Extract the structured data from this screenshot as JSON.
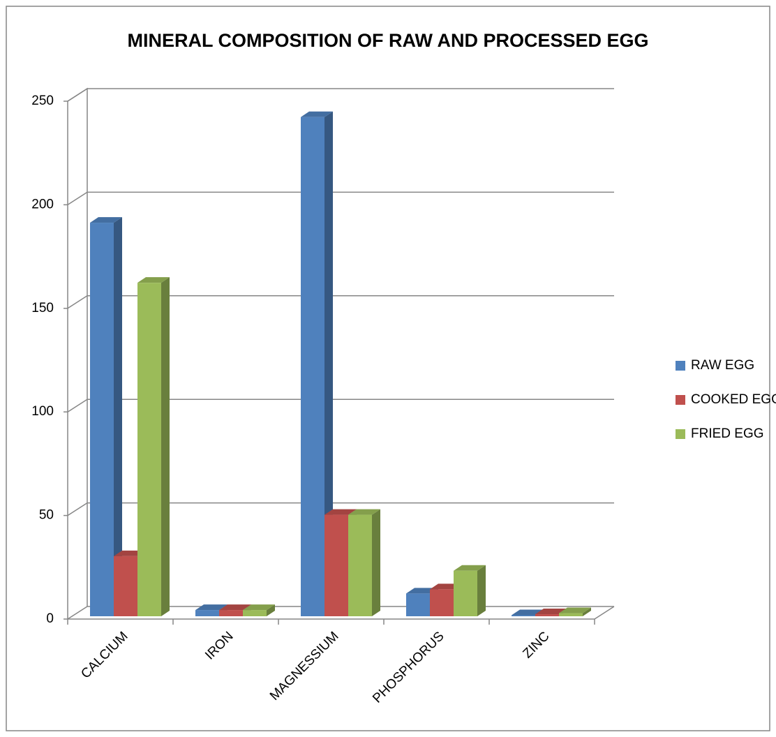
{
  "chart_data": {
    "type": "bar3d",
    "title": "MINERAL COMPOSITION OF RAW AND PROCESSED EGG",
    "categories": [
      "CALCIUM",
      "IRON",
      "MAGNESSIUM",
      "PHOSPHORUS",
      "ZINC"
    ],
    "series": [
      {
        "name": "RAW EGG",
        "color": "#4f81bd",
        "values": [
          190,
          3,
          241,
          11,
          0.5
        ]
      },
      {
        "name": "COOKED EGG",
        "color": "#c0504d",
        "values": [
          29,
          3,
          49,
          13,
          1
        ]
      },
      {
        "name": "FRIED EGG",
        "color": "#9bbb59",
        "values": [
          161,
          3,
          49,
          22,
          1.5
        ]
      }
    ],
    "ylim": [
      0,
      250
    ],
    "yticks": [
      0,
      50,
      100,
      150,
      200,
      250
    ],
    "grid": true,
    "legend": "right"
  }
}
